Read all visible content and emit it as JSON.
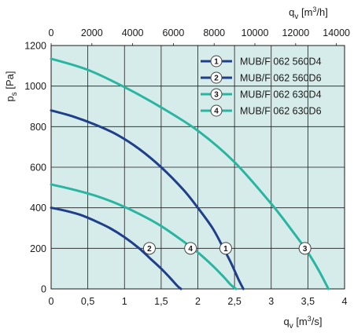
{
  "chart_data": {
    "type": "line",
    "title": "",
    "xlabel": "qv [m³/s]",
    "x2label": "qv [m³/h]",
    "ylabel": "ps [Pa]",
    "xlim": [
      0,
      4
    ],
    "x2lim": [
      0,
      14400
    ],
    "ylim": [
      0,
      1200
    ],
    "grid": true,
    "legend_position": "top-right",
    "x_ticks": [
      "0",
      "0,5",
      "1",
      "1,5",
      "2",
      "2,5",
      "3",
      "3,5",
      "4"
    ],
    "x_tick_values": [
      0,
      0.5,
      1,
      1.5,
      2,
      2.5,
      3,
      3.5,
      4
    ],
    "x2_ticks": [
      "0",
      "2000",
      "4000",
      "6000",
      "8000",
      "10000",
      "12000",
      "14000"
    ],
    "x2_tick_values": [
      0,
      2000,
      4000,
      6000,
      8000,
      10000,
      12000,
      14000
    ],
    "y_ticks": [
      "0",
      "200",
      "400",
      "600",
      "800",
      "1000",
      "1200"
    ],
    "y_tick_values": [
      0,
      200,
      400,
      600,
      800,
      1000,
      1200
    ],
    "series": [
      {
        "name": "MUB/F 062 560D4",
        "marker": "1",
        "color": "#1f3f8a",
        "x": [
          0,
          0.3,
          0.6,
          0.9,
          1.2,
          1.5,
          1.8,
          2.0,
          2.2,
          2.35,
          2.45,
          2.55,
          2.62
        ],
        "y": [
          880,
          850,
          810,
          760,
          690,
          600,
          490,
          400,
          300,
          200,
          130,
          50,
          0
        ],
        "marker_x": 2.38,
        "marker_y": 200
      },
      {
        "name": "MUB/F 062 560D6",
        "marker": "2",
        "color": "#1f3f8a",
        "x": [
          0,
          0.2,
          0.4,
          0.6,
          0.8,
          1.0,
          1.2,
          1.35,
          1.5,
          1.62,
          1.72,
          1.77
        ],
        "y": [
          400,
          385,
          365,
          335,
          300,
          255,
          200,
          150,
          100,
          55,
          15,
          0
        ],
        "marker_x": 1.34,
        "marker_y": 200
      },
      {
        "name": "MUB/F 062 630D4",
        "marker": "3",
        "color": "#2ab5a0",
        "x": [
          0,
          0.5,
          1.0,
          1.5,
          2.0,
          2.5,
          3.0,
          3.3,
          3.5,
          3.65,
          3.78
        ],
        "y": [
          1135,
          1080,
          995,
          895,
          780,
          625,
          420,
          280,
          180,
          90,
          0
        ],
        "marker_x": 3.46,
        "marker_y": 200
      },
      {
        "name": "MUB/F 062 630D6",
        "marker": "4",
        "color": "#2ab5a0",
        "x": [
          0,
          0.3,
          0.6,
          0.9,
          1.2,
          1.5,
          1.8,
          2.0,
          2.2,
          2.35,
          2.45,
          2.52
        ],
        "y": [
          515,
          490,
          460,
          420,
          370,
          310,
          235,
          180,
          115,
          60,
          20,
          0
        ],
        "marker_x": 1.9,
        "marker_y": 200
      }
    ]
  },
  "colors": {
    "plot_background": "#d6ecea",
    "grid": "#1a1a1a",
    "dark_series": "#1f3f8a",
    "light_series": "#2ab5a0"
  }
}
